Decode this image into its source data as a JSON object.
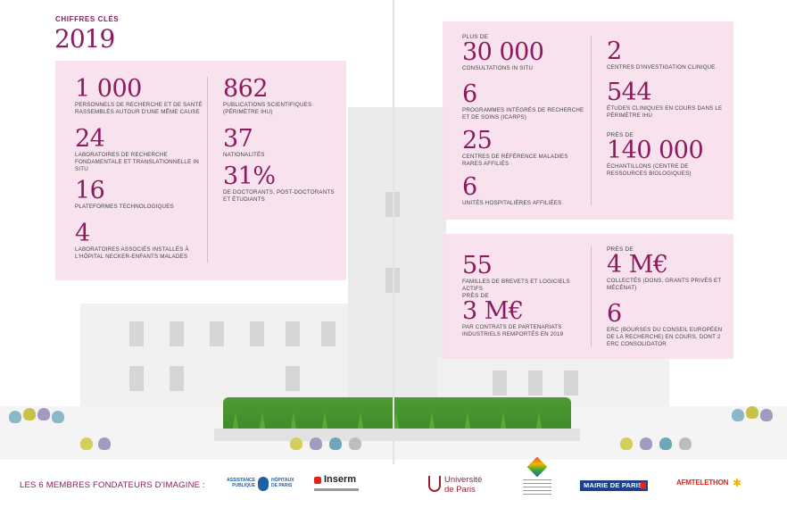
{
  "header": {
    "kicker": "CHIFFRES CLÉS",
    "year": "2019"
  },
  "panel_left": {
    "col1": [
      {
        "value": "1 000",
        "label": "PERSONNELS DE RECHERCHE ET DE SANTÉ RASSEMBLÉS AUTOUR D'UNE MÊME CAUSE"
      },
      {
        "value": "24",
        "label": "LABORATOIRES DE RECHERCHE FONDAMENTALE ET TRANSLATIONNELLE IN SITU"
      },
      {
        "value": "16",
        "label": "PLATEFORMES TECHNOLOGIQUES"
      },
      {
        "value": "4",
        "label": "LABORATOIRES ASSOCIÉS INSTALLÉS À L'HÔPITAL NECKER-ENFANTS MALADES"
      }
    ],
    "col2": [
      {
        "value": "862",
        "label": "PUBLICATIONS SCIENTIFIQUES (PÉRIMÈTRE IHU)"
      },
      {
        "value": "37",
        "label": "NATIONALITÉS"
      },
      {
        "value": "31%",
        "label": "DE DOCTORANTS, POST-DOCTORANTS ET ÉTUDIANTS"
      }
    ]
  },
  "panel_top_right": {
    "col1": [
      {
        "prefix": "PLUS DE",
        "value": "30 000",
        "label": "CONSULTATIONS IN SITU"
      },
      {
        "value": "6",
        "label": "PROGRAMMES INTÉGRÉS DE RECHERCHE ET DE SOINS (ICARPS)"
      },
      {
        "value": "25",
        "label": "CENTRES DE RÉFÉRENCE MALADIES RARES AFFILIÉS"
      },
      {
        "value": "6",
        "label": "UNITÉS HOSPITALIÈRES AFFILIÉES"
      }
    ],
    "col2": [
      {
        "value": "2",
        "label": "CENTRES D'INVESTIGATION CLINIQUE"
      },
      {
        "value": "544",
        "label": "ÉTUDES CLINIQUES EN COURS DANS LE PÉRIMÈTRE IHU"
      },
      {
        "prefix": "PRÈS DE",
        "value": "140 000",
        "label": "ÉCHANTILLONS (CENTRE DE RESSOURCES BIOLOGIQUES)"
      }
    ]
  },
  "panel_bottom_right": {
    "col1": [
      {
        "value": "55",
        "label": "FAMILLES DE BREVETS ET LOGICIELS ACTIFS"
      },
      {
        "prefix": "PRÈS DE",
        "value": "3 M€",
        "label": "PAR CONTRATS DE PARTENARIATS INDUSTRIELS REMPORTÉS EN 2019"
      }
    ],
    "col2": [
      {
        "prefix": "PRÈS DE",
        "value": "4 M€",
        "label": "COLLECTÉS (DONS, GRANTS PRIVÉS ET MÉCÉNAT)"
      },
      {
        "value": "6",
        "label": "ERC (BOURSES DU CONSEIL EUROPÉEN DE LA RECHERCHE) EN COURS, DONT 2 ERC CONSOLIDATOR"
      }
    ]
  },
  "footer": {
    "founders_label": "LES 6 MEMBRES FONDATEURS D'IMAGINE :",
    "logos": {
      "aphp_line1": "ASSISTANCE",
      "aphp_line2": "PUBLIQUE",
      "aphp_line3": "HÔPITAUX",
      "aphp_line4": "DE PARIS",
      "inserm": "Inserm",
      "universite_line1": "Université",
      "universite_line2": "de Paris",
      "mairie": "MAIRIE DE PARIS",
      "afm": "AFMTELETHON"
    }
  },
  "colors": {
    "accent": "#8b1a5e",
    "panel": "#f8e0ec",
    "grass": "#4f9a33"
  }
}
